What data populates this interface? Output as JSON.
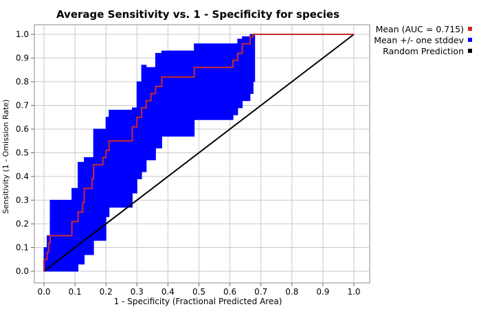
{
  "chart_data": {
    "type": "line",
    "title": "Average Sensitivity vs. 1 - Specificity for species",
    "xlabel": "1 - Specificity (Fractional Predicted Area)",
    "ylabel": "Sensitivity (1 - Omission Rate)",
    "xlim": [
      0,
      1
    ],
    "ylim": [
      0,
      1
    ],
    "xticks": [
      "0.0",
      "0.1",
      "0.2",
      "0.3",
      "0.4",
      "0.5",
      "0.6",
      "0.7",
      "0.8",
      "0.9",
      "1.0"
    ],
    "yticks": [
      "0.0",
      "0.1",
      "0.2",
      "0.3",
      "0.4",
      "0.5",
      "0.6",
      "0.7",
      "0.8",
      "0.9",
      "1.0"
    ],
    "grid": true,
    "legend_position": "top-right",
    "series": [
      {
        "name": "Mean (AUC = 0.715)",
        "color": "#cc2a2a",
        "kind": "step-line",
        "x": [
          0.0,
          0.0,
          0.01,
          0.01,
          0.015,
          0.015,
          0.02,
          0.02,
          0.09,
          0.09,
          0.11,
          0.11,
          0.125,
          0.125,
          0.13,
          0.13,
          0.155,
          0.155,
          0.16,
          0.16,
          0.19,
          0.19,
          0.2,
          0.2,
          0.21,
          0.21,
          0.285,
          0.285,
          0.3,
          0.3,
          0.315,
          0.315,
          0.33,
          0.33,
          0.345,
          0.345,
          0.36,
          0.36,
          0.38,
          0.38,
          0.485,
          0.485,
          0.61,
          0.61,
          0.625,
          0.625,
          0.64,
          0.64,
          0.665,
          0.665,
          0.675,
          0.675,
          1.0
        ],
        "y": [
          0.0,
          0.05,
          0.05,
          0.08,
          0.08,
          0.12,
          0.12,
          0.15,
          0.15,
          0.21,
          0.21,
          0.25,
          0.25,
          0.29,
          0.29,
          0.35,
          0.35,
          0.39,
          0.39,
          0.45,
          0.45,
          0.48,
          0.48,
          0.51,
          0.51,
          0.55,
          0.55,
          0.61,
          0.61,
          0.65,
          0.65,
          0.69,
          0.69,
          0.72,
          0.72,
          0.75,
          0.75,
          0.78,
          0.78,
          0.82,
          0.82,
          0.86,
          0.86,
          0.89,
          0.89,
          0.92,
          0.92,
          0.96,
          0.96,
          0.99,
          0.99,
          1.0,
          1.0
        ]
      },
      {
        "name": "Mean +/- one stddev",
        "color": "#0000ff",
        "kind": "band",
        "x": [
          0.0,
          0.01,
          0.02,
          0.09,
          0.11,
          0.13,
          0.16,
          0.2,
          0.21,
          0.285,
          0.3,
          0.315,
          0.33,
          0.36,
          0.38,
          0.485,
          0.61,
          0.625,
          0.64,
          0.665,
          0.675,
          0.68
        ],
        "lower": [
          0.0,
          0.0,
          0.0,
          0.0,
          0.03,
          0.07,
          0.13,
          0.23,
          0.27,
          0.33,
          0.39,
          0.42,
          0.47,
          0.52,
          0.57,
          0.64,
          0.66,
          0.69,
          0.72,
          0.75,
          0.8,
          0.85
        ],
        "upper": [
          0.1,
          0.15,
          0.3,
          0.35,
          0.46,
          0.48,
          0.6,
          0.65,
          0.68,
          0.69,
          0.8,
          0.87,
          0.86,
          0.92,
          0.93,
          0.96,
          0.96,
          0.98,
          0.99,
          1.0,
          1.0,
          1.0
        ]
      },
      {
        "name": "Random Prediction",
        "color": "#000000",
        "kind": "line",
        "x": [
          0,
          1
        ],
        "y": [
          0,
          1
        ]
      }
    ]
  }
}
